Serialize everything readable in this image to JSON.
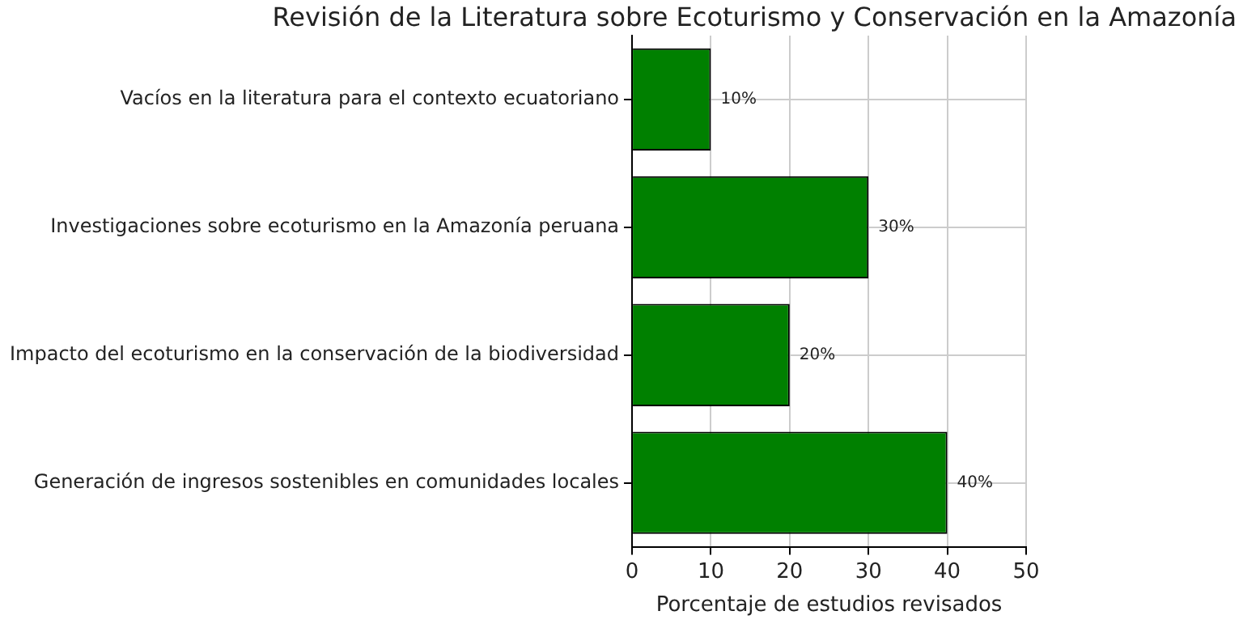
{
  "chart_data": {
    "type": "bar",
    "orientation": "horizontal",
    "title": "Revisión de la Literatura sobre Ecoturismo y Conservación en la Amazonía",
    "xlabel": "Porcentaje de estudios revisados",
    "categories": [
      "Vacíos en la literatura para el contexto ecuatoriano",
      "Investigaciones sobre ecoturismo en la Amazonía peruana",
      "Impacto del ecoturismo en la conservación de la biodiversidad",
      "Generación de ingresos sostenibles en comunidades locales"
    ],
    "values": [
      10,
      30,
      20,
      40
    ],
    "value_labels": [
      "10%",
      "30%",
      "20%",
      "40%"
    ],
    "color": "#008000",
    "xlim": [
      0,
      50
    ],
    "xticks": [
      0,
      10,
      20,
      30,
      40,
      50
    ],
    "grid": true,
    "legend": false
  }
}
